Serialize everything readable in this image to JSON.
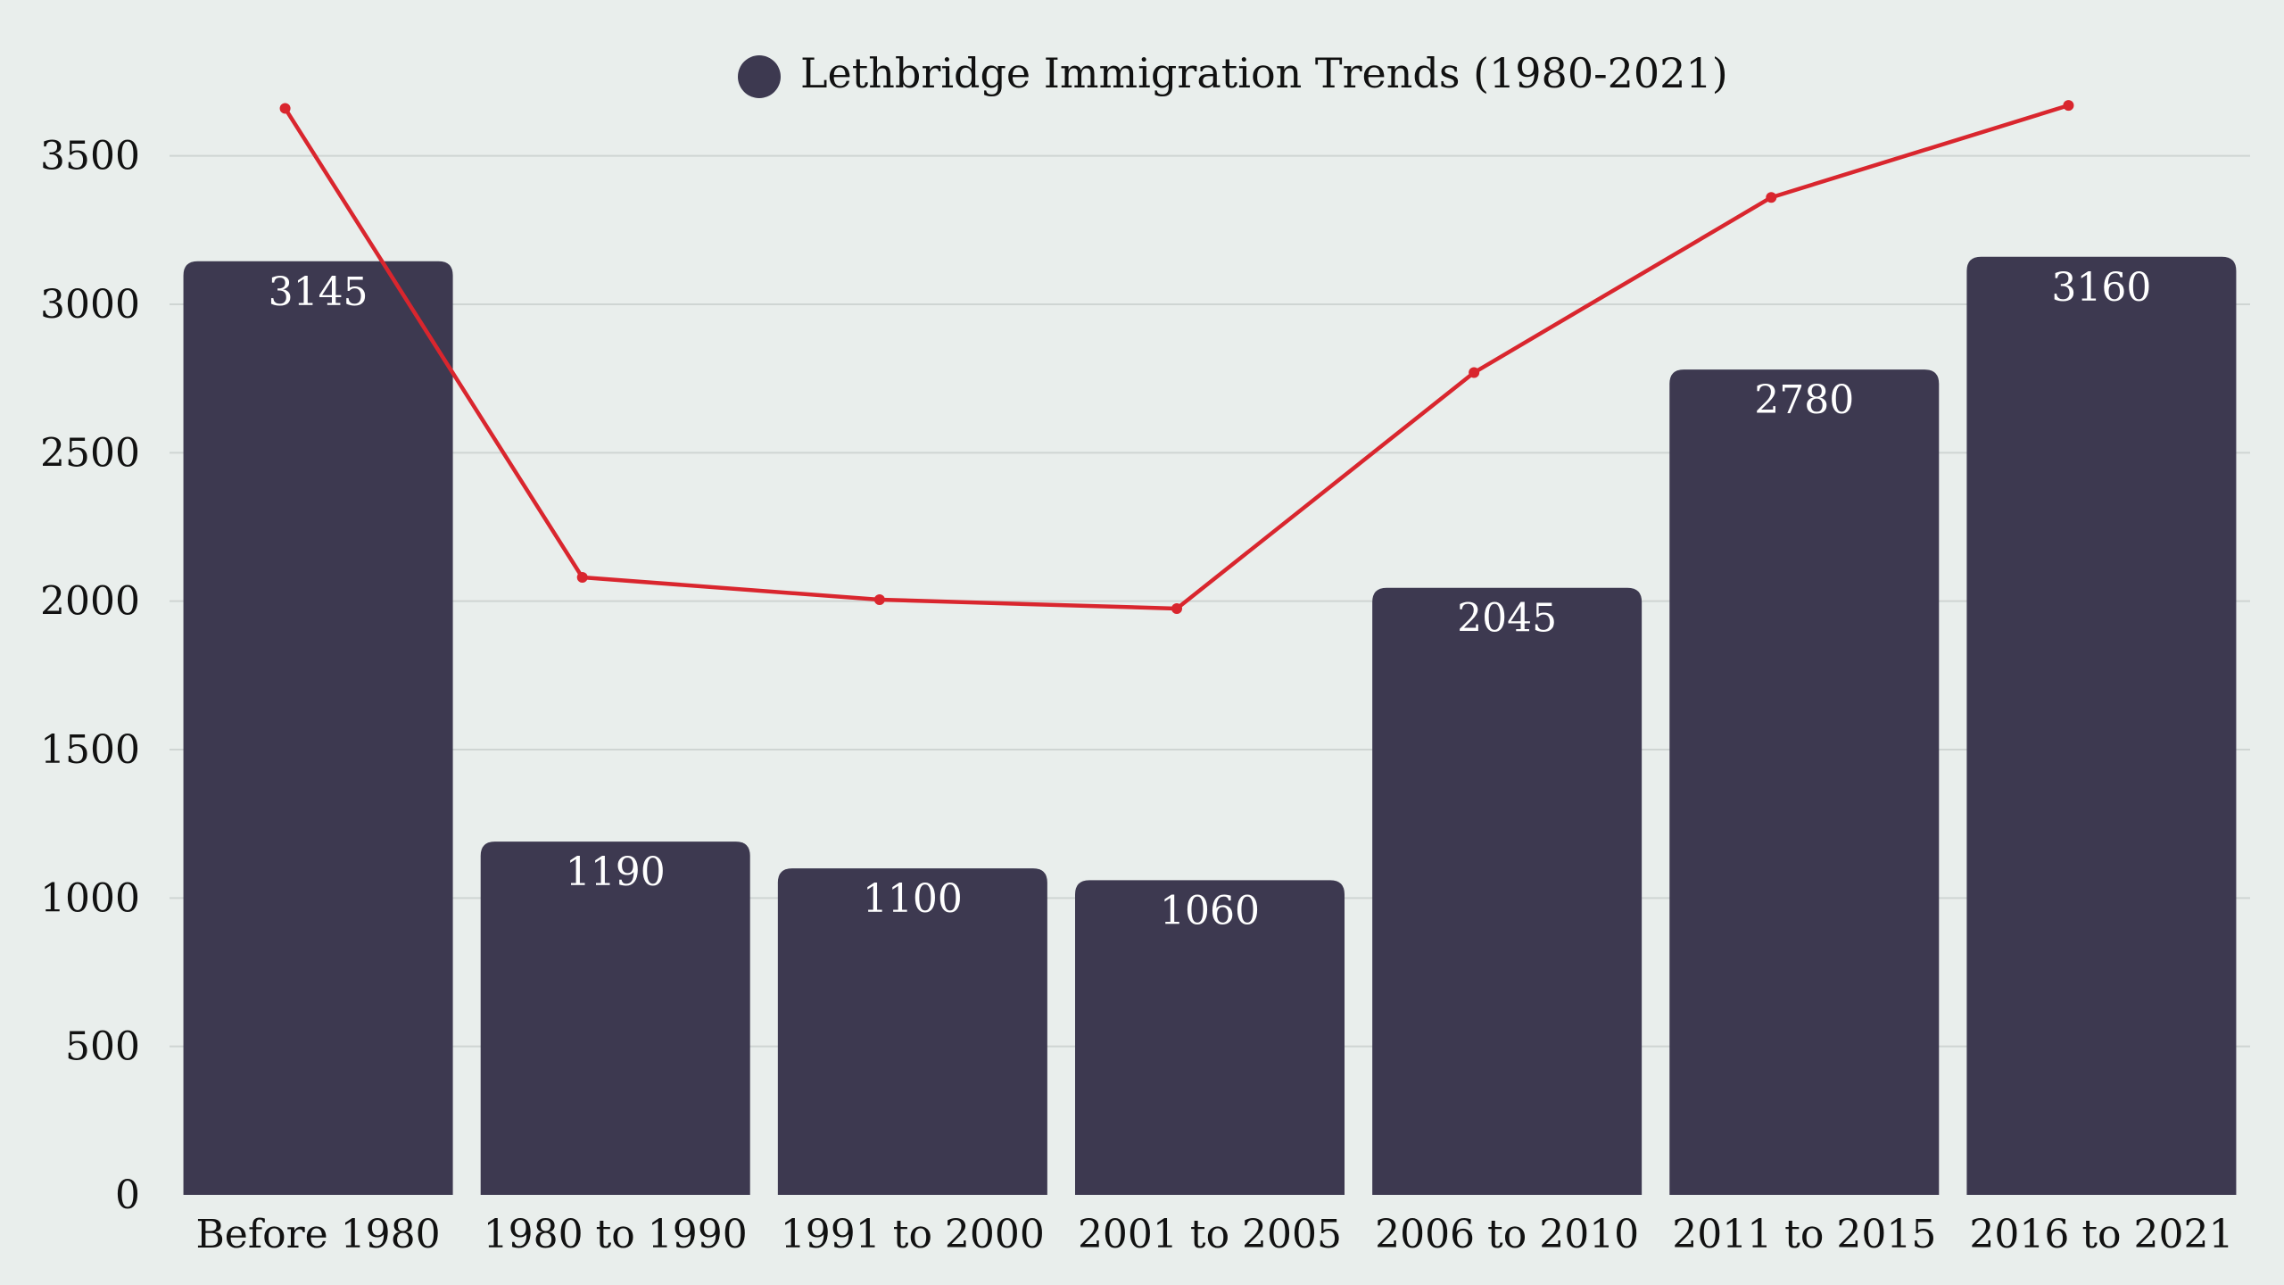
{
  "chart_data": {
    "type": "bar",
    "categories": [
      "Before 1980",
      "1980 to 1990",
      "1991 to 2000",
      "2001 to 2005",
      "2006 to 2010",
      "2011 to 2015",
      "2016 to 2021"
    ],
    "series": [
      {
        "name": "Lethbridge Immigration Trends (1980-2021)",
        "type": "bar",
        "values": [
          3145,
          1190,
          1100,
          1060,
          2045,
          2780,
          3160
        ],
        "color": "#3d3950"
      },
      {
        "type": "line",
        "values": [
          3660,
          2080,
          2005,
          1975,
          2770,
          3360,
          3670
        ],
        "color": "#d9262e"
      }
    ],
    "yticks": [
      0,
      500,
      1000,
      1500,
      2000,
      2500,
      3000,
      3500
    ],
    "ylim": [
      0,
      3650
    ],
    "grid": true,
    "legend_position": "top-center",
    "data_labels": true
  }
}
